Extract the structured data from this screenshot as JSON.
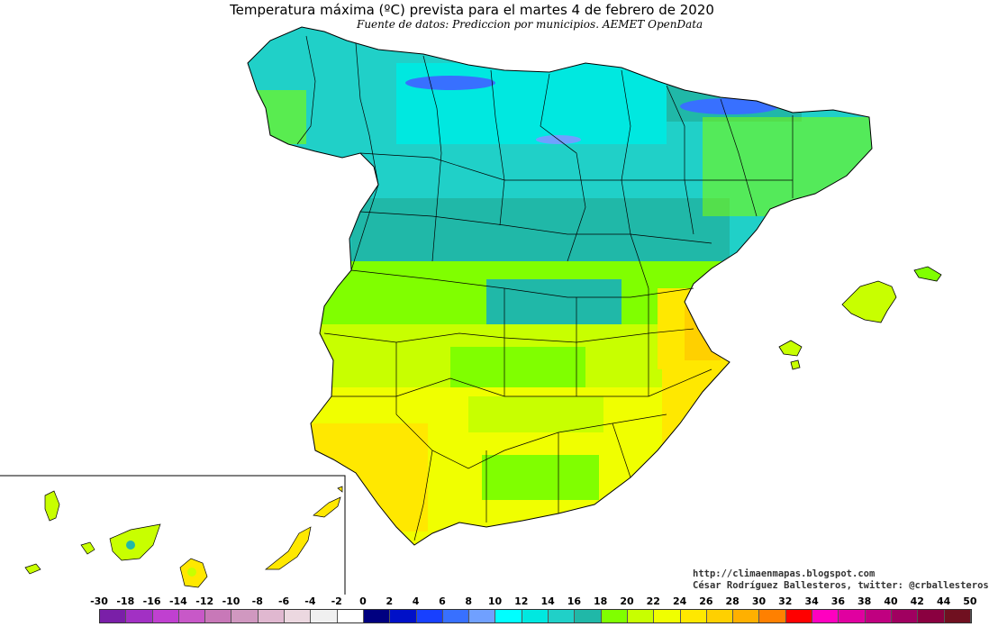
{
  "title": "Temperatura máxima (ºC) prevista para el martes 4 de febrero de 2020",
  "subtitle": "Fuente de datos: Prediccion por municipios. AEMET OpenData",
  "credits": {
    "blog": "http://climaenmapas.blogspot.com",
    "author": "César Rodríguez Ballesteros, twitter: @crballesteros"
  },
  "legend": {
    "labels": [
      "-30",
      "-18",
      "-16",
      "-14",
      "-12",
      "-10",
      "-8",
      "-6",
      "-4",
      "-2",
      "0",
      "2",
      "4",
      "6",
      "8",
      "10",
      "12",
      "14",
      "16",
      "18",
      "20",
      "22",
      "24",
      "26",
      "28",
      "30",
      "32",
      "34",
      "36",
      "38",
      "40",
      "42",
      "44",
      "50"
    ],
    "colors": [
      "#7a1fa8",
      "#a230c4",
      "#c040d0",
      "#c858c8",
      "#c878b8",
      "#d098c0",
      "#e0b8d0",
      "#ecd8e0",
      "#f0f0f0",
      "#ffffff",
      "#000080",
      "#0010c8",
      "#1840ff",
      "#3870ff",
      "#70a0ff",
      "#00ffff",
      "#00e8e0",
      "#20d0c8",
      "#20b8a8",
      "#80ff00",
      "#c8ff00",
      "#f0ff00",
      "#ffe800",
      "#ffd000",
      "#ffb000",
      "#ff8000",
      "#ff0000",
      "#ff00c0",
      "#e000a0",
      "#c00080",
      "#a00060",
      "#8a0040",
      "#701020"
    ]
  },
  "regions": {
    "peninsula": "Península",
    "baleares": "Illes Balears",
    "canarias": "Canarias"
  }
}
